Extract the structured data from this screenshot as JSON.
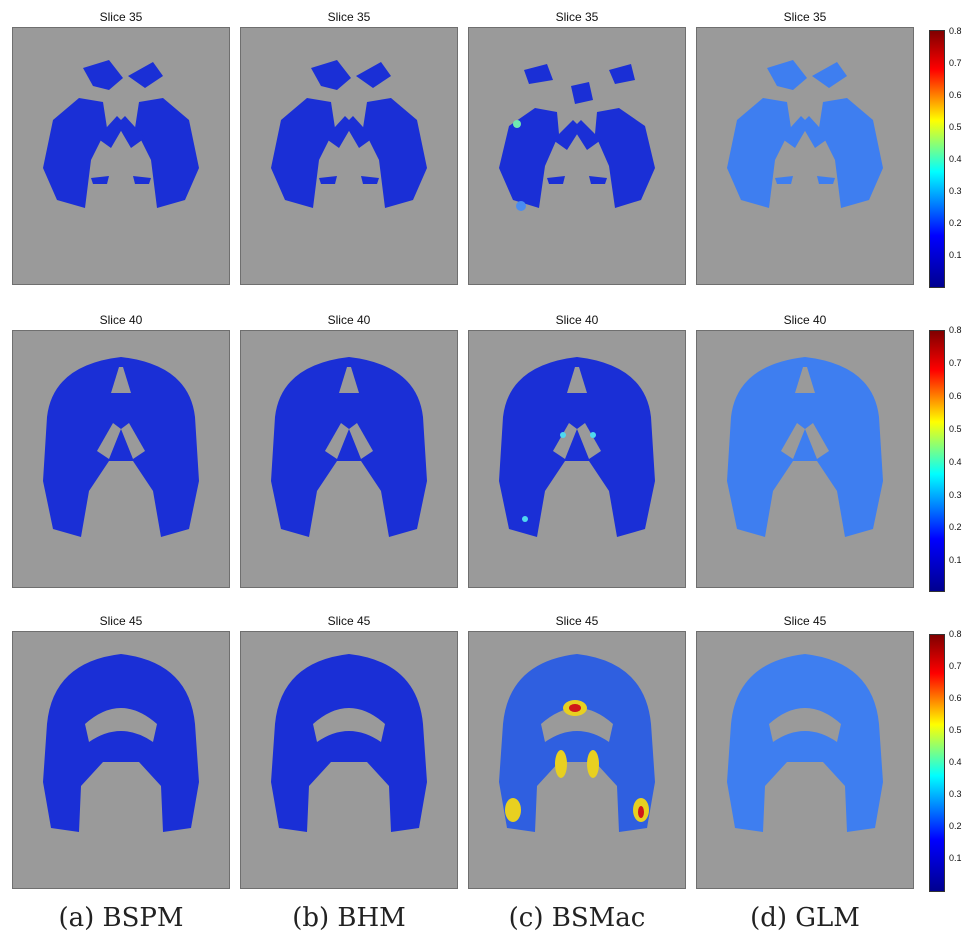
{
  "rows": [
    {
      "slice_label": "Slice 35"
    },
    {
      "slice_label": "Slice 40"
    },
    {
      "slice_label": "Slice 45"
    }
  ],
  "captions": [
    "(a) BSPM",
    "(b) BHM",
    "(c) BSMac",
    "(d) GLM"
  ],
  "colorbar": {
    "ticks": [
      "0.8",
      "0.7",
      "0.6",
      "0.5",
      "0.4",
      "0.3",
      "0.2",
      "0.1"
    ],
    "colormap": [
      "#00008f",
      "#0000ff",
      "#00ffff",
      "#ffff00",
      "#ff0000",
      "#800000"
    ]
  },
  "colors": {
    "background": "#9a9a9a",
    "low": "#1a2fd6",
    "mid": "#4a8cf0",
    "high": "#e8d020",
    "peak": "#d01818"
  }
}
